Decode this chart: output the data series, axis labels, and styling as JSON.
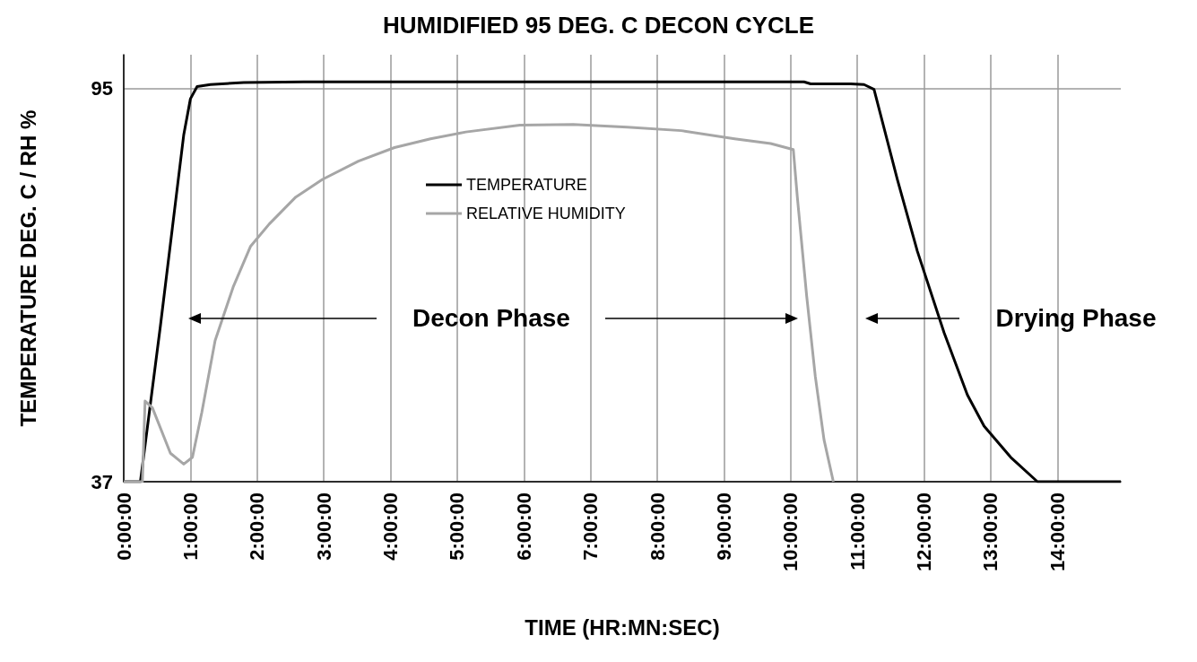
{
  "chart_data": {
    "type": "line",
    "title": "HUMIDIFIED 95 DEG. C DECON CYCLE",
    "xlabel": "TIME (HR:MN:SEC)",
    "ylabel": "TEMPERATURE DEG. C / RH %",
    "xlim": [
      0,
      14.95
    ],
    "ylim": [
      37,
      100
    ],
    "xticks": [
      {
        "value": 0,
        "label": "0:00:00"
      },
      {
        "value": 1,
        "label": "1:00:00"
      },
      {
        "value": 2,
        "label": "2:00:00"
      },
      {
        "value": 3,
        "label": "3:00:00"
      },
      {
        "value": 4,
        "label": "4:00:00"
      },
      {
        "value": 5,
        "label": "5:00:00"
      },
      {
        "value": 6,
        "label": "6:00:00"
      },
      {
        "value": 7,
        "label": "7:00:00"
      },
      {
        "value": 8,
        "label": "8:00:00"
      },
      {
        "value": 9,
        "label": "9:00:00"
      },
      {
        "value": 10,
        "label": "10:00:00"
      },
      {
        "value": 11,
        "label": "11:00:00"
      },
      {
        "value": 12,
        "label": "12:00:00"
      },
      {
        "value": 13,
        "label": "13:00:00"
      },
      {
        "value": 14,
        "label": "14:00:00"
      }
    ],
    "yticks": [
      37,
      95
    ],
    "grid": true,
    "legend": "top",
    "marker": "none",
    "line_style": "solid",
    "series": [
      {
        "name": "TEMPERATURE",
        "color": "#000000",
        "x": [
          0,
          0.25,
          0.55,
          0.9,
          1.0,
          1.1,
          1.3,
          1.8,
          2.7,
          5,
          8,
          10.2,
          10.3,
          10.9,
          11.1,
          11.25,
          11.6,
          11.9,
          12.3,
          12.65,
          12.9,
          13.3,
          13.7,
          14.95
        ],
        "values": [
          37,
          37,
          60,
          88.2,
          93.5,
          95.3,
          95.6,
          95.9,
          96,
          96,
          96,
          96,
          95.7,
          95.7,
          95.6,
          94.9,
          81.6,
          71,
          59,
          49.8,
          45.2,
          40.6,
          37,
          37
        ]
      },
      {
        "name": "RELATIVE HUMIDITY",
        "color": "#a6a6a6",
        "x": [
          0,
          0.28,
          0.32,
          0.43,
          0.7,
          0.9,
          1.03,
          1.17,
          1.37,
          1.64,
          1.9,
          2.18,
          2.58,
          2.98,
          3.52,
          4.06,
          4.6,
          5.13,
          5.94,
          6.74,
          7.55,
          8.36,
          9.16,
          9.7,
          10.04,
          10.1,
          10.24,
          10.37,
          10.5,
          10.64
        ],
        "values": [
          37,
          37,
          48.9,
          47.9,
          41.2,
          39.6,
          40.6,
          47.2,
          57.8,
          65.7,
          71.7,
          75,
          79,
          81.6,
          84.3,
          86.3,
          87.6,
          88.6,
          89.6,
          89.7,
          89.3,
          88.8,
          87.6,
          86.9,
          86,
          79,
          64.4,
          52.5,
          43.2,
          37
        ]
      }
    ],
    "annotations": [
      "Decon Phase",
      "Drying Phase"
    ]
  }
}
